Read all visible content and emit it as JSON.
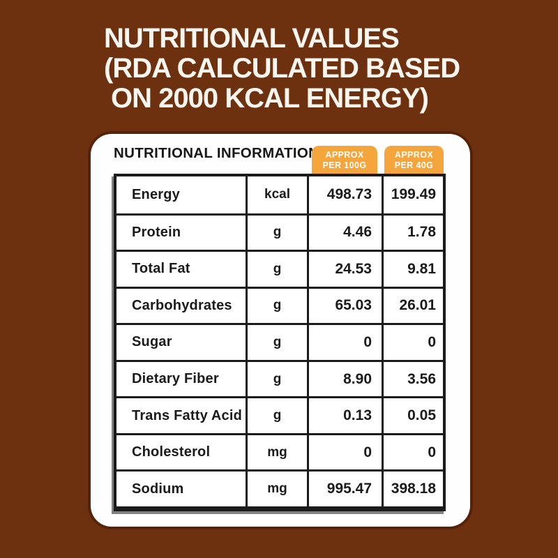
{
  "title": {
    "line1": "NUTRITIONAL VALUES",
    "line2": "(RDA CALCULATED BASED",
    "line3": "ON 2000 KCAL ENERGY)"
  },
  "card": {
    "header": "NUTRITIONAL INFORMATION",
    "badges": [
      {
        "line1": "APPROX",
        "line2": "PER 100G"
      },
      {
        "line1": "APPROX",
        "line2": "PER 40G"
      }
    ]
  },
  "table": {
    "rows": [
      {
        "name": "Energy",
        "unit": "kcal",
        "per100g": "498.73",
        "per40g": "199.49"
      },
      {
        "name": "Protein",
        "unit": "g",
        "per100g": "4.46",
        "per40g": "1.78"
      },
      {
        "name": "Total Fat",
        "unit": "g",
        "per100g": "24.53",
        "per40g": "9.81"
      },
      {
        "name": "Carbohydrates",
        "unit": "g",
        "per100g": "65.03",
        "per40g": "26.01"
      },
      {
        "name": "Sugar",
        "unit": "g",
        "per100g": "0",
        "per40g": "0"
      },
      {
        "name": "Dietary Fiber",
        "unit": "g",
        "per100g": "8.90",
        "per40g": "3.56"
      },
      {
        "name": "Trans Fatty Acid",
        "unit": "g",
        "per100g": "0.13",
        "per40g": "0.05"
      },
      {
        "name": "Cholesterol",
        "unit": "mg",
        "per100g": "0",
        "per40g": "0"
      },
      {
        "name": "Sodium",
        "unit": "mg",
        "per100g": "995.47",
        "per40g": "398.18"
      }
    ]
  },
  "colors": {
    "background": "#6D3110",
    "badge_orange": "#F4A63C",
    "card_white": "#FEFEFE",
    "ink_black": "#1B1B1B",
    "title_white": "#F9F6EF"
  }
}
